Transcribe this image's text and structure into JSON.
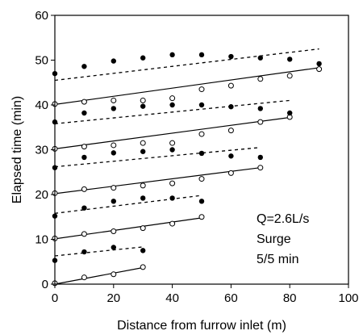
{
  "chart_data": {
    "type": "scatter",
    "title": "",
    "xlabel": "Distance from furrow inlet (m)",
    "ylabel": "Elapsed time (min)",
    "xlim": [
      0,
      100
    ],
    "ylim": [
      0,
      60
    ],
    "xticks": [
      "0",
      "20",
      "40",
      "60",
      "80",
      "100"
    ],
    "yticks": [
      "0",
      "10",
      "20",
      "30",
      "40",
      "50",
      "60"
    ],
    "annotations": [
      "Q=2.6L/s",
      "Surge",
      "5/5 min"
    ],
    "grid": false,
    "legend": "none",
    "advance_points": [
      {
        "x": [
          0,
          10,
          20,
          30
        ],
        "y": [
          0.2,
          1.5,
          2.2,
          3.8
        ]
      },
      {
        "x": [
          0,
          10,
          20,
          30,
          40,
          50
        ],
        "y": [
          10.2,
          11.2,
          11.8,
          12.5,
          13.5,
          15.0
        ]
      },
      {
        "x": [
          0,
          10,
          20,
          30,
          40,
          50,
          60,
          70
        ],
        "y": [
          20.3,
          21.2,
          21.5,
          22.0,
          22.5,
          23.5,
          24.8,
          26.0
        ]
      },
      {
        "x": [
          0,
          10,
          20,
          30,
          40,
          50,
          60,
          70,
          80
        ],
        "y": [
          30.2,
          30.7,
          31.0,
          31.5,
          31.5,
          33.5,
          34.3,
          36.2,
          37.3
        ]
      },
      {
        "x": [
          0,
          10,
          20,
          30,
          40,
          50,
          60,
          70,
          80,
          90
        ],
        "y": [
          40.2,
          40.7,
          41.0,
          41.0,
          41.5,
          43.5,
          44.3,
          45.8,
          46.5,
          48.0
        ]
      }
    ],
    "advance_fits": [
      {
        "x": [
          0,
          30
        ],
        "y": [
          0,
          3.7
        ]
      },
      {
        "x": [
          0,
          50
        ],
        "y": [
          10.1,
          14.8
        ]
      },
      {
        "x": [
          0,
          70
        ],
        "y": [
          20.2,
          26.0
        ]
      },
      {
        "x": [
          0,
          80
        ],
        "y": [
          30.2,
          37.2
        ]
      },
      {
        "x": [
          0,
          90
        ],
        "y": [
          40.1,
          48.3
        ]
      }
    ],
    "recession_points": [
      {
        "x": [
          0,
          10,
          20,
          30
        ],
        "y": [
          5.3,
          7.2,
          8.2,
          7.5
        ]
      },
      {
        "x": [
          0,
          10,
          20,
          30,
          40,
          50
        ],
        "y": [
          15.2,
          17.0,
          18.5,
          19.2,
          19.2,
          18.5
        ]
      },
      {
        "x": [
          0,
          10,
          20,
          30,
          40,
          50,
          60,
          70
        ],
        "y": [
          26.0,
          28.3,
          29.3,
          29.6,
          30.0,
          29.2,
          28.6,
          28.3
        ]
      },
      {
        "x": [
          0,
          10,
          20,
          30,
          40,
          50,
          60,
          70,
          80
        ],
        "y": [
          36.2,
          38.2,
          39.2,
          39.7,
          40.0,
          40.0,
          39.6,
          39.2,
          38.2
        ]
      },
      {
        "x": [
          0,
          10,
          20,
          30,
          40,
          50,
          60,
          70,
          80,
          90
        ],
        "y": [
          47.0,
          48.6,
          49.8,
          50.5,
          51.2,
          51.2,
          50.8,
          50.5,
          50.2,
          49.2
        ]
      }
    ],
    "recession_fits": [
      {
        "x": [
          0,
          30
        ],
        "y": [
          6.3,
          8.3
        ]
      },
      {
        "x": [
          0,
          50
        ],
        "y": [
          15.8,
          19.8
        ]
      },
      {
        "x": [
          0,
          70
        ],
        "y": [
          26.2,
          30.5
        ]
      },
      {
        "x": [
          0,
          80
        ],
        "y": [
          35.8,
          41.0
        ]
      },
      {
        "x": [
          0,
          90
        ],
        "y": [
          45.5,
          52.5
        ]
      }
    ]
  }
}
